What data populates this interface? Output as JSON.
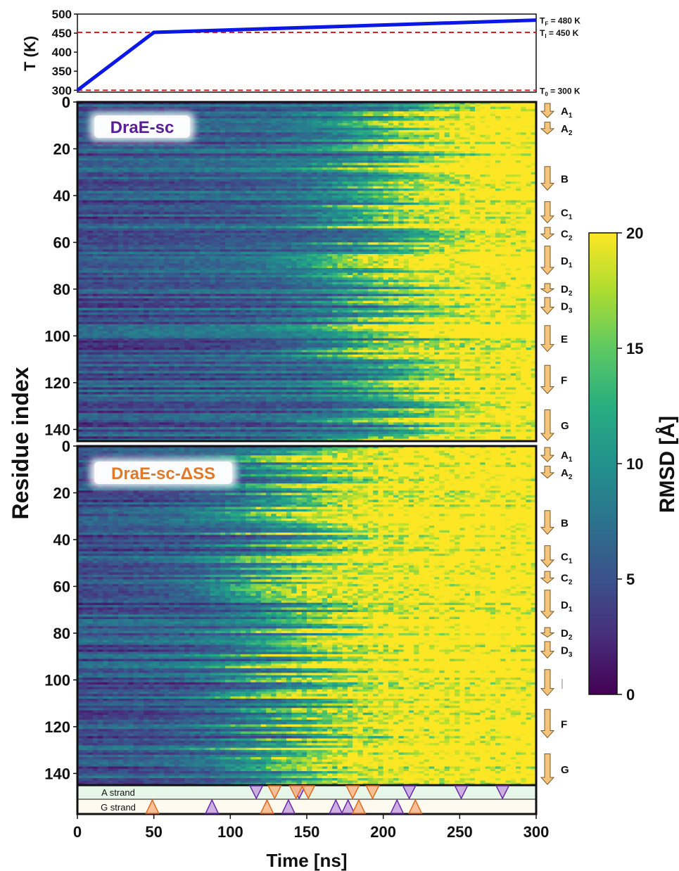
{
  "chart_data": [
    {
      "type": "line",
      "ylabel": "T (K)",
      "xlim": [
        0,
        300
      ],
      "ylim": [
        295,
        500
      ],
      "yticks": [
        300,
        350,
        400,
        450,
        500
      ],
      "series": [
        {
          "x": [
            0,
            50,
            300
          ],
          "y": [
            300,
            452,
            484
          ],
          "color": "#0a18e6"
        }
      ],
      "reference_lines": [
        {
          "y": 300,
          "color": "#e02020",
          "style": "dashed",
          "label": "T",
          "sub": "0",
          "tail": " = 300 K"
        },
        {
          "y": 452,
          "color": "#e02020",
          "style": "dashed",
          "label": "T",
          "sub": "I",
          "tail": " = 450 K"
        },
        {
          "y": 484,
          "label": "T",
          "sub": "F",
          "tail": " = 480 K"
        }
      ]
    },
    {
      "type": "heatmap",
      "title": "DraE-sc",
      "title_color": "#5a1e96",
      "xlim": [
        0,
        300
      ],
      "ylim": [
        0,
        145
      ],
      "yticks": [
        0,
        20,
        40,
        60,
        80,
        100,
        120,
        140
      ],
      "colorscale": "viridis",
      "zlim": [
        0,
        20
      ],
      "unfolding_onset_ns": 200
    },
    {
      "type": "heatmap",
      "title": "DraE-sc-ΔSS",
      "title_color": "#e07a2a",
      "xlim": [
        0,
        300
      ],
      "ylim": [
        0,
        145
      ],
      "yticks": [
        0,
        20,
        40,
        60,
        80,
        100,
        120,
        140
      ],
      "colorscale": "viridis",
      "zlim": [
        0,
        20
      ],
      "unfolding_onset_ns": 140
    },
    {
      "type": "scatter",
      "xlabel": "Time [ns]",
      "xlim": [
        0,
        300
      ],
      "xticks": [
        0,
        50,
        100,
        150,
        200,
        250,
        300
      ],
      "rows": [
        {
          "name": "A strand",
          "orientation": "down",
          "purple": [
            117,
            145,
            217,
            251,
            278
          ],
          "orange": [
            129,
            143,
            151,
            180,
            193
          ]
        },
        {
          "name": "G strand",
          "orientation": "up",
          "purple": [
            88,
            138,
            169,
            177,
            209
          ],
          "orange": [
            49,
            124,
            184,
            221
          ]
        }
      ]
    }
  ],
  "shared": {
    "ylabel": "Residue index",
    "colorbar": {
      "label": "RMSD [Å]",
      "ticks": [
        0,
        5,
        10,
        15,
        20
      ],
      "range": [
        0,
        20
      ]
    },
    "strand_labels_top": [
      {
        "main": "A",
        "sub": "1",
        "y0": 0,
        "y1": 7
      },
      {
        "main": "A",
        "sub": "2",
        "y0": 8,
        "y1": 14
      },
      {
        "main": "B",
        "sub": "",
        "y0": 27,
        "y1": 38
      },
      {
        "main": "C",
        "sub": "1",
        "y0": 42,
        "y1": 52
      },
      {
        "main": "C",
        "sub": "2",
        "y0": 53,
        "y1": 59
      },
      {
        "main": "D",
        "sub": "1",
        "y0": 61,
        "y1": 74
      },
      {
        "main": "D",
        "sub": "2",
        "y0": 77,
        "y1": 82
      },
      {
        "main": "D",
        "sub": "3",
        "y0": 83,
        "y1": 91
      },
      {
        "main": "E",
        "sub": "",
        "y0": 95,
        "y1": 107
      },
      {
        "main": "F",
        "sub": "",
        "y0": 112,
        "y1": 125
      },
      {
        "main": "G",
        "sub": "",
        "y0": 131,
        "y1": 145
      }
    ],
    "strand_labels_bottom": [
      {
        "main": "A",
        "sub": "1",
        "y0": 0,
        "y1": 7
      },
      {
        "main": "A",
        "sub": "2",
        "y0": 8,
        "y1": 14
      },
      {
        "main": "B",
        "sub": "",
        "y0": 27,
        "y1": 38
      },
      {
        "main": "C",
        "sub": "1",
        "y0": 42,
        "y1": 52
      },
      {
        "main": "C",
        "sub": "2",
        "y0": 53,
        "y1": 59
      },
      {
        "main": "D",
        "sub": "1",
        "y0": 61,
        "y1": 74
      },
      {
        "main": "D",
        "sub": "2",
        "y0": 77,
        "y1": 82
      },
      {
        "main": "D",
        "sub": "3",
        "y0": 83,
        "y1": 91
      },
      {
        "main": "",
        "sub": "",
        "y0": 95,
        "y1": 107
      },
      {
        "main": "F",
        "sub": "",
        "y0": 112,
        "y1": 125
      },
      {
        "main": "G",
        "sub": "",
        "y0": 131,
        "y1": 145
      }
    ]
  }
}
